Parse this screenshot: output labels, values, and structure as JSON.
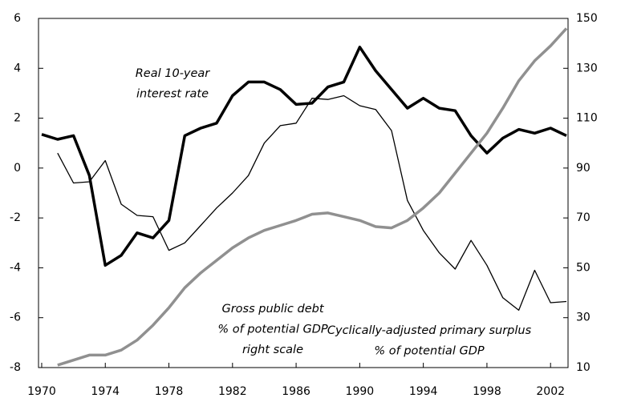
{
  "chart_data": {
    "type": "line",
    "x": [
      1970,
      1971,
      1972,
      1973,
      1974,
      1975,
      1976,
      1977,
      1978,
      1979,
      1980,
      1981,
      1982,
      1983,
      1984,
      1985,
      1986,
      1987,
      1988,
      1989,
      1990,
      1991,
      1992,
      1993,
      1994,
      1995,
      1996,
      1997,
      1998,
      1999,
      2000,
      2001,
      2002,
      2003
    ],
    "xlim": [
      1969.8,
      2003.1
    ],
    "xticks": [
      1970,
      1974,
      1978,
      1982,
      1986,
      1990,
      1994,
      1998,
      2002
    ],
    "ylim": [
      -8,
      6
    ],
    "yticks": [
      -8,
      -6,
      -4,
      -2,
      0,
      2,
      4,
      6
    ],
    "y2lim": [
      10,
      150
    ],
    "y2ticks": [
      10,
      30,
      50,
      70,
      90,
      110,
      130,
      150
    ],
    "series": [
      {
        "label_lines": [
          "Real 10-year",
          "interest rate"
        ],
        "color": "#000000",
        "width": 3.5,
        "values": [
          1.35,
          1.15,
          1.3,
          -0.3,
          -3.9,
          -3.5,
          -2.6,
          -2.8,
          -2.1,
          1.3,
          1.6,
          1.8,
          2.9,
          3.45,
          3.45,
          3.15,
          2.55,
          2.6,
          3.25,
          3.45,
          4.85,
          3.9,
          3.15,
          2.4,
          2.8,
          2.4,
          2.3,
          1.3,
          0.6,
          1.2,
          1.55,
          1.4,
          1.6,
          1.3
        ]
      },
      {
        "label_lines": [
          "Cyclically-adjusted primary surplus",
          "% of potential GDP"
        ],
        "color": "#000000",
        "width": 1.3,
        "values": [
          null,
          0.6,
          -0.6,
          -0.55,
          0.3,
          -1.45,
          -1.9,
          -1.95,
          -3.3,
          -3.0,
          -2.3,
          -1.6,
          -1.0,
          -0.3,
          1.0,
          1.7,
          1.8,
          2.8,
          2.75,
          2.9,
          2.5,
          2.35,
          1.5,
          -1.3,
          -2.5,
          -3.4,
          -4.05,
          -2.9,
          -3.9,
          -5.2,
          -5.7,
          -4.1,
          -5.4,
          -5.35
        ]
      },
      {
        "label_lines": [
          "Gross public debt",
          "% of potential GDP",
          "right scale"
        ],
        "color": "#909090",
        "width": 3.5,
        "axis": "y2",
        "values": [
          null,
          11,
          13,
          15,
          15,
          17,
          21,
          27,
          34,
          42,
          48,
          53,
          58,
          62,
          65,
          67,
          69,
          71.5,
          72,
          70.5,
          69,
          66.5,
          66,
          69,
          74,
          80,
          88,
          96,
          104,
          114,
          125,
          133,
          139,
          146
        ]
      }
    ]
  }
}
